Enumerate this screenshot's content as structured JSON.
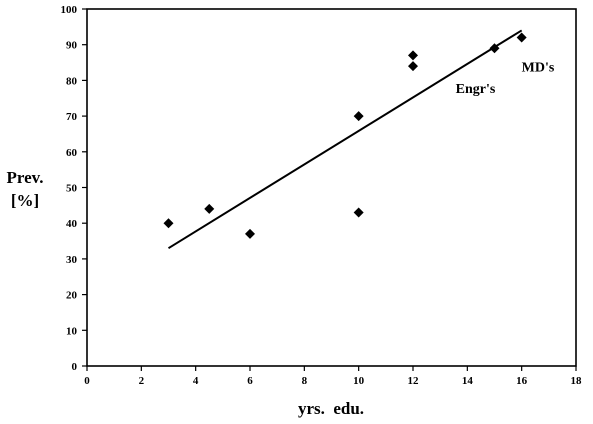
{
  "chart_data": {
    "type": "scatter",
    "xlabel": "yrs.  edu.",
    "ylabel": [
      "Prev.",
      "[%]"
    ],
    "xlim": [
      0,
      18
    ],
    "ylim": [
      0,
      100
    ],
    "xticks": [
      0,
      2,
      4,
      6,
      8,
      10,
      12,
      14,
      16,
      18
    ],
    "yticks": [
      0,
      10,
      20,
      30,
      40,
      50,
      60,
      70,
      80,
      90,
      100
    ],
    "grid": false,
    "series": [
      {
        "marker": "diamond",
        "color": "#000000",
        "points": [
          {
            "x": 3,
            "y": 40
          },
          {
            "x": 4.5,
            "y": 44
          },
          {
            "x": 6,
            "y": 37
          },
          {
            "x": 10,
            "y": 70
          },
          {
            "x": 10,
            "y": 43
          },
          {
            "x": 12,
            "y": 87
          },
          {
            "x": 12,
            "y": 84
          },
          {
            "x": 15,
            "y": 89
          },
          {
            "x": 16,
            "y": 92
          }
        ]
      }
    ],
    "trendline": {
      "x1": 3,
      "y1": 33,
      "x2": 16,
      "y2": 94
    },
    "annotations": [
      {
        "text": "MD's",
        "x": 16.6,
        "y": 82.5
      },
      {
        "text": "Engr's",
        "x": 14.3,
        "y": 76.5
      }
    ]
  }
}
